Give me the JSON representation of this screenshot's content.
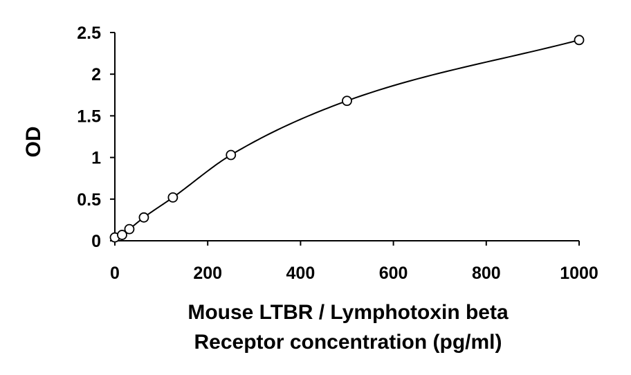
{
  "chart_data": {
    "type": "scatter",
    "title": "",
    "xlabel": [
      "Mouse LTBR / Lymphotoxin beta",
      "Receptor concentration (pg/ml)"
    ],
    "ylabel": "OD",
    "xlim": [
      0,
      1000
    ],
    "ylim": [
      0,
      2.5
    ],
    "x_ticks": [
      0,
      200,
      400,
      600,
      800,
      1000
    ],
    "y_ticks": [
      0,
      0.5,
      1,
      1.5,
      2,
      2.5
    ],
    "x_tick_labels": [
      "0",
      "200",
      "400",
      "600",
      "800",
      "1000"
    ],
    "y_tick_labels": [
      "0",
      "0.5",
      "1",
      "1.5",
      "2",
      "2.5"
    ],
    "grid": false,
    "legend": "none",
    "series": [
      {
        "marker": "open-circle",
        "trendline": "smooth",
        "x": [
          0,
          15.6,
          31.25,
          62.5,
          125,
          250,
          500,
          1000
        ],
        "y": [
          0.04,
          0.07,
          0.14,
          0.28,
          0.52,
          1.03,
          1.68,
          2.41
        ]
      }
    ],
    "colors": {
      "line": "#000000",
      "marker": "#000000",
      "axis": "#000000"
    }
  }
}
